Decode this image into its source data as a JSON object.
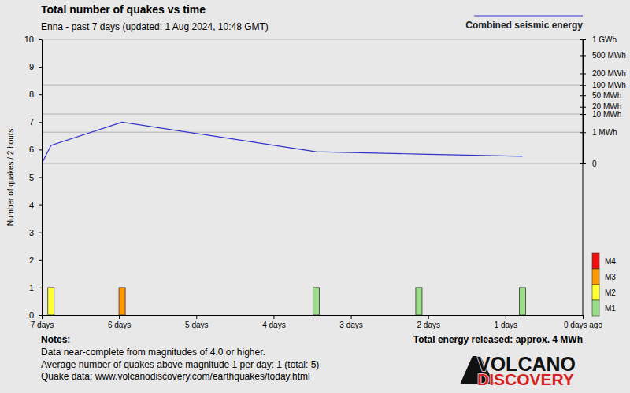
{
  "chart_data": {
    "type": "bar",
    "title": "Total number of quakes vs time",
    "subtitle": "Enna - past 7 days (updated: 1 Aug 2024, 10:48 GMT)",
    "ylabel": "Number of quakes / 2 hours",
    "xlim": [
      7,
      0
    ],
    "xticks": [
      {
        "value": 7,
        "label": "7 days"
      },
      {
        "value": 6,
        "label": "6 days"
      },
      {
        "value": 5,
        "label": "5 days"
      },
      {
        "value": 4,
        "label": "4 days"
      },
      {
        "value": 3,
        "label": "3 days"
      },
      {
        "value": 2,
        "label": "2 days"
      },
      {
        "value": 1,
        "label": "1 days"
      },
      {
        "value": 0,
        "label": "0 days ago"
      }
    ],
    "ylim": [
      0,
      10
    ],
    "yticks": [
      0,
      1,
      2,
      3,
      4,
      5,
      6,
      7,
      8,
      9,
      10
    ],
    "y2lim": [
      0,
      1000
    ],
    "y2ticks": [
      0,
      {
        "value": 1,
        "label": "1 MWh"
      },
      {
        "value": 10,
        "label": "10 MWh"
      },
      {
        "value": 20,
        "label": "20 MWh"
      },
      {
        "value": 50,
        "label": "50 MWh"
      },
      {
        "value": 100,
        "label": "100 MWh"
      },
      {
        "value": 200,
        "label": "200 MWh"
      },
      {
        "value": 500,
        "label": "500 MWh"
      },
      {
        "value": 1000,
        "label": "1 GWh"
      }
    ],
    "grid": true,
    "legend": "top-right",
    "series": [
      {
        "name": "Combined seismic energy",
        "type": "line",
        "axis": "y2",
        "color": "#3333cc",
        "x": [
          7,
          6.88,
          5.96,
          3.45,
          2.12,
          0.78
        ],
        "values": [
          0,
          0.064,
          4.1,
          0.0075,
          0.0024,
          0.0006
        ]
      },
      {
        "type": "bar",
        "x": [
          6.88,
          5.96,
          3.45,
          2.12,
          0.78
        ],
        "values": [
          1,
          1,
          1,
          1,
          1
        ],
        "colors": [
          "#ffff33",
          "#ff9900",
          "#99dd88",
          "#99dd88",
          "#99dd88"
        ]
      }
    ],
    "magnitude_legend": {
      "labels": [
        "M4",
        "M3",
        "M2",
        "M1"
      ],
      "colors": [
        "#ee1111",
        "#ff9900",
        "#ffff33",
        "#99dd88"
      ]
    },
    "total_energy": "Total energy released: approx. 4 MWh",
    "notes_title": "Notes:",
    "notes": [
      "Data near-complete from magnitudes of 4.0 or higher.",
      "Average number of quakes above magnitude 1 per day: 1 (total: 5)",
      "Quake data: www.volcanodiscovery.com/earthquakes/today.html"
    ],
    "logo": [
      "VOLCANO",
      "DISCOVERY"
    ]
  }
}
